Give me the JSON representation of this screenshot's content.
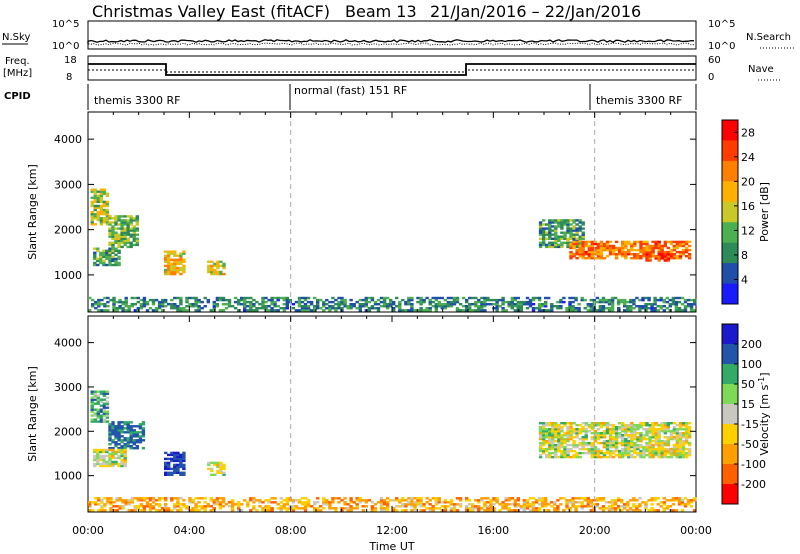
{
  "header": {
    "title": "Christmas Valley East (fitACF)",
    "beam": "Beam 13",
    "dates": "21/Jan/2016 – 22/Jan/2016"
  },
  "status_panels": {
    "nsky_label": "N.Sky",
    "nsearch_label": "N.Search",
    "nsky_ticks": [
      "10^5",
      "10^0"
    ],
    "nsearch_ticks": [
      "10^5",
      "10^0"
    ],
    "freq_label_1": "Freq.",
    "freq_label_2": "[MHz]",
    "freq_ticks": [
      "18",
      "8"
    ],
    "nave_label": "Nave",
    "nave_ticks": [
      "60",
      "0"
    ],
    "cpid_label": "CPID",
    "cpid_segments": [
      {
        "label": "themis 3300 RF"
      },
      {
        "label": "normal (fast) 151 RF"
      },
      {
        "label": "themis 3300 RF"
      }
    ]
  },
  "colors": {
    "power_scale": [
      "#1a1aff",
      "#1f4fa8",
      "#2e8b57",
      "#4caf50",
      "#c8c829",
      "#ffb000",
      "#ff7f00",
      "#ff3c00",
      "#ff0000"
    ],
    "velocity_scale": [
      "#1a1acc",
      "#2255aa",
      "#33aa66",
      "#7ed957",
      "#c8c8c0",
      "#ffd000",
      "#ffa000",
      "#ff6000",
      "#ff0000"
    ]
  },
  "chart_data": [
    {
      "type": "heatmap",
      "name": "power",
      "ylabel": "Slant Range [km]",
      "xlabel": "Time UT",
      "x_ticks": [
        "00:00",
        "04:00",
        "08:00",
        "12:00",
        "16:00",
        "20:00",
        "00:00"
      ],
      "x_range_hours": [
        0,
        24
      ],
      "y_ticks": [
        1000,
        2000,
        3000,
        4000
      ],
      "ylim": [
        180,
        4600
      ],
      "colorbar_label": "Power [dB]",
      "colorbar_ticks": [
        4,
        8,
        12,
        16,
        20,
        24,
        28
      ],
      "colorbar_range": [
        0,
        30
      ],
      "dashed_verticals_hours": [
        8,
        20
      ],
      "blobs": [
        {
          "t0": 0.1,
          "t1": 0.8,
          "r0": 2100,
          "r1": 2900,
          "value": 14
        },
        {
          "t0": 0.8,
          "t1": 2.0,
          "r0": 1600,
          "r1": 2300,
          "value": 12
        },
        {
          "t0": 0.2,
          "t1": 1.2,
          "r0": 1200,
          "r1": 1600,
          "value": 10
        },
        {
          "t0": 3.0,
          "t1": 3.8,
          "r0": 1000,
          "r1": 1500,
          "value": 18
        },
        {
          "t0": 4.7,
          "t1": 5.4,
          "r0": 1000,
          "r1": 1300,
          "value": 16
        },
        {
          "t0": 17.8,
          "t1": 19.5,
          "r0": 1600,
          "r1": 2200,
          "value": 10
        },
        {
          "t0": 19.0,
          "t1": 23.7,
          "r0": 1350,
          "r1": 1750,
          "value": 22
        },
        {
          "t0": 22.0,
          "t1": 23.0,
          "r0": 1300,
          "r1": 1450,
          "value": 26
        },
        {
          "t0": 0.0,
          "t1": 24.0,
          "r0": 200,
          "r1": 500,
          "value": 8
        }
      ]
    },
    {
      "type": "heatmap",
      "name": "velocity",
      "ylabel": "Slant Range [km]",
      "xlabel": "Time UT",
      "x_ticks": [
        "00:00",
        "04:00",
        "08:00",
        "12:00",
        "16:00",
        "20:00",
        "00:00"
      ],
      "x_range_hours": [
        0,
        24
      ],
      "y_ticks": [
        1000,
        2000,
        3000,
        4000
      ],
      "ylim": [
        180,
        4600
      ],
      "colorbar_label": "Velocity [m s^-1]",
      "colorbar_ticks": [
        200,
        100,
        50,
        15,
        -15,
        -50,
        -100,
        -200
      ],
      "dashed_verticals_hours": [
        8,
        20
      ],
      "blobs": [
        {
          "t0": 0.1,
          "t1": 0.8,
          "r0": 2200,
          "r1": 2900,
          "value": 60
        },
        {
          "t0": 0.8,
          "t1": 2.2,
          "r0": 1600,
          "r1": 2200,
          "value": 120
        },
        {
          "t0": 0.2,
          "t1": 1.5,
          "r0": 1200,
          "r1": 1600,
          "value": 0
        },
        {
          "t0": 3.0,
          "t1": 3.8,
          "r0": 1000,
          "r1": 1500,
          "value": 180
        },
        {
          "t0": 4.7,
          "t1": 5.4,
          "r0": 1000,
          "r1": 1300,
          "value": 0
        },
        {
          "t0": 17.8,
          "t1": 23.8,
          "r0": 1400,
          "r1": 2200,
          "value": 0
        },
        {
          "t0": 0.0,
          "t1": 24.0,
          "r0": 200,
          "r1": 500,
          "value": -60
        }
      ]
    }
  ]
}
